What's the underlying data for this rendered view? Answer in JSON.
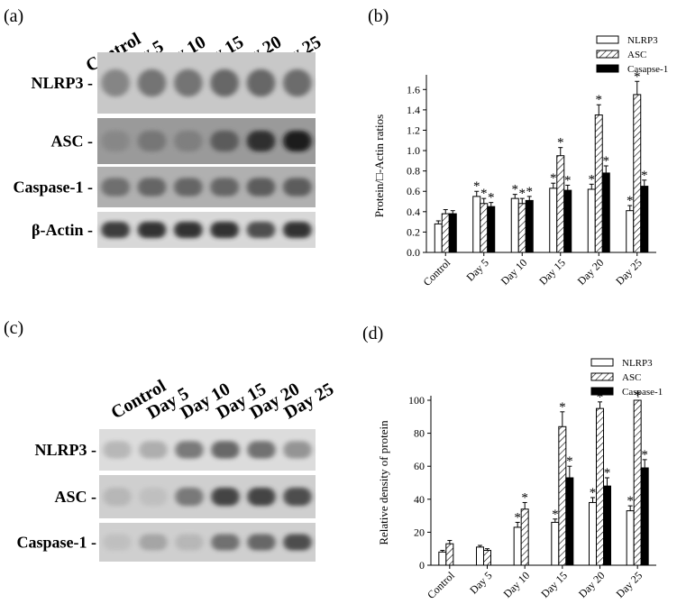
{
  "panels": {
    "a": {
      "label": "(a)"
    },
    "b": {
      "label": "(b)"
    },
    "c": {
      "label": "(c)"
    },
    "d": {
      "label": "(d)"
    }
  },
  "blot_a": {
    "lanes": [
      "Control",
      "Day 5",
      "Day 10",
      "Day 15",
      "Day 20",
      "Day 25"
    ],
    "rows": [
      "NLRP3 -",
      "ASC -",
      "Caspase-1 -",
      "β-Actin -"
    ],
    "band_intensity": [
      [
        0.38,
        0.48,
        0.48,
        0.55,
        0.55,
        0.52
      ],
      [
        0.35,
        0.45,
        0.4,
        0.6,
        0.85,
        0.95
      ],
      [
        0.5,
        0.55,
        0.55,
        0.55,
        0.6,
        0.6
      ],
      [
        0.8,
        0.85,
        0.85,
        0.85,
        0.7,
        0.85
      ]
    ]
  },
  "blot_c": {
    "lanes": [
      "Control",
      "Day 5",
      "Day 10",
      "Day 15",
      "Day 20",
      "Day 25"
    ],
    "rows": [
      "NLRP3 -",
      "ASC -",
      "Caspase-1 -"
    ],
    "band_intensity": [
      [
        0.1,
        0.15,
        0.45,
        0.55,
        0.5,
        0.3
      ],
      [
        0.1,
        0.05,
        0.45,
        0.75,
        0.75,
        0.7
      ],
      [
        0.05,
        0.2,
        0.1,
        0.5,
        0.55,
        0.7
      ]
    ]
  },
  "chart_data": [
    {
      "type": "bar",
      "panel": "(b)",
      "categories": [
        "Control",
        "Day 5",
        "Day 10",
        "Day 15",
        "Day 20",
        "Day 25"
      ],
      "ylabel": "Protein/□-Actin ratios",
      "xlabel": "",
      "ylim": [
        0,
        1.7
      ],
      "yticks": [
        "0.0",
        "0.2",
        "0.4",
        "0.6",
        "0.8",
        "1.0",
        "1.2",
        "1.4",
        "1.6"
      ],
      "legend_position": "top-right",
      "series": [
        {
          "name": "NLRP3",
          "pattern": "white",
          "values": [
            0.28,
            0.55,
            0.53,
            0.63,
            0.62,
            0.41
          ],
          "errors": [
            0.03,
            0.05,
            0.04,
            0.05,
            0.05,
            0.05
          ],
          "significant": [
            false,
            true,
            true,
            true,
            true,
            true
          ]
        },
        {
          "name": "ASC",
          "pattern": "hatched",
          "values": [
            0.38,
            0.48,
            0.48,
            0.95,
            1.35,
            1.55
          ],
          "errors": [
            0.04,
            0.05,
            0.05,
            0.08,
            0.1,
            0.13
          ],
          "significant": [
            false,
            true,
            true,
            true,
            true,
            true
          ]
        },
        {
          "name": "Casapse-1",
          "pattern": "black",
          "values": [
            0.38,
            0.45,
            0.51,
            0.61,
            0.78,
            0.65
          ],
          "errors": [
            0.03,
            0.04,
            0.04,
            0.05,
            0.07,
            0.06
          ],
          "significant": [
            false,
            true,
            true,
            true,
            true,
            true
          ]
        }
      ],
      "annotation_symbol": "*"
    },
    {
      "type": "bar",
      "panel": "(d)",
      "categories": [
        "Control",
        "Day 5",
        "Day 10",
        "Day 15",
        "Day 20",
        "Day 25"
      ],
      "ylabel": "Relative density of protein",
      "xlabel": "",
      "ylim": [
        0,
        100
      ],
      "yticks": [
        "0",
        "20",
        "40",
        "60",
        "80",
        "100"
      ],
      "legend_position": "top-right",
      "series": [
        {
          "name": "NLRP3",
          "pattern": "white",
          "values": [
            8,
            11,
            23,
            26,
            38,
            33
          ],
          "errors": [
            1,
            1,
            3,
            2,
            3,
            3
          ],
          "significant": [
            false,
            false,
            true,
            true,
            true,
            true
          ]
        },
        {
          "name": "ASC",
          "pattern": "hatched",
          "values": [
            13,
            9,
            34,
            84,
            95,
            100
          ],
          "errors": [
            2,
            1,
            4,
            9,
            4,
            0
          ],
          "significant": [
            false,
            false,
            true,
            true,
            true,
            true
          ]
        },
        {
          "name": "Caspase-1",
          "pattern": "black",
          "values": [
            0,
            0,
            0,
            53,
            48,
            59
          ],
          "errors": [
            0,
            0,
            0,
            7,
            5,
            5
          ],
          "significant": [
            false,
            false,
            false,
            true,
            true,
            true
          ]
        }
      ],
      "annotation_symbol": "*"
    }
  ]
}
